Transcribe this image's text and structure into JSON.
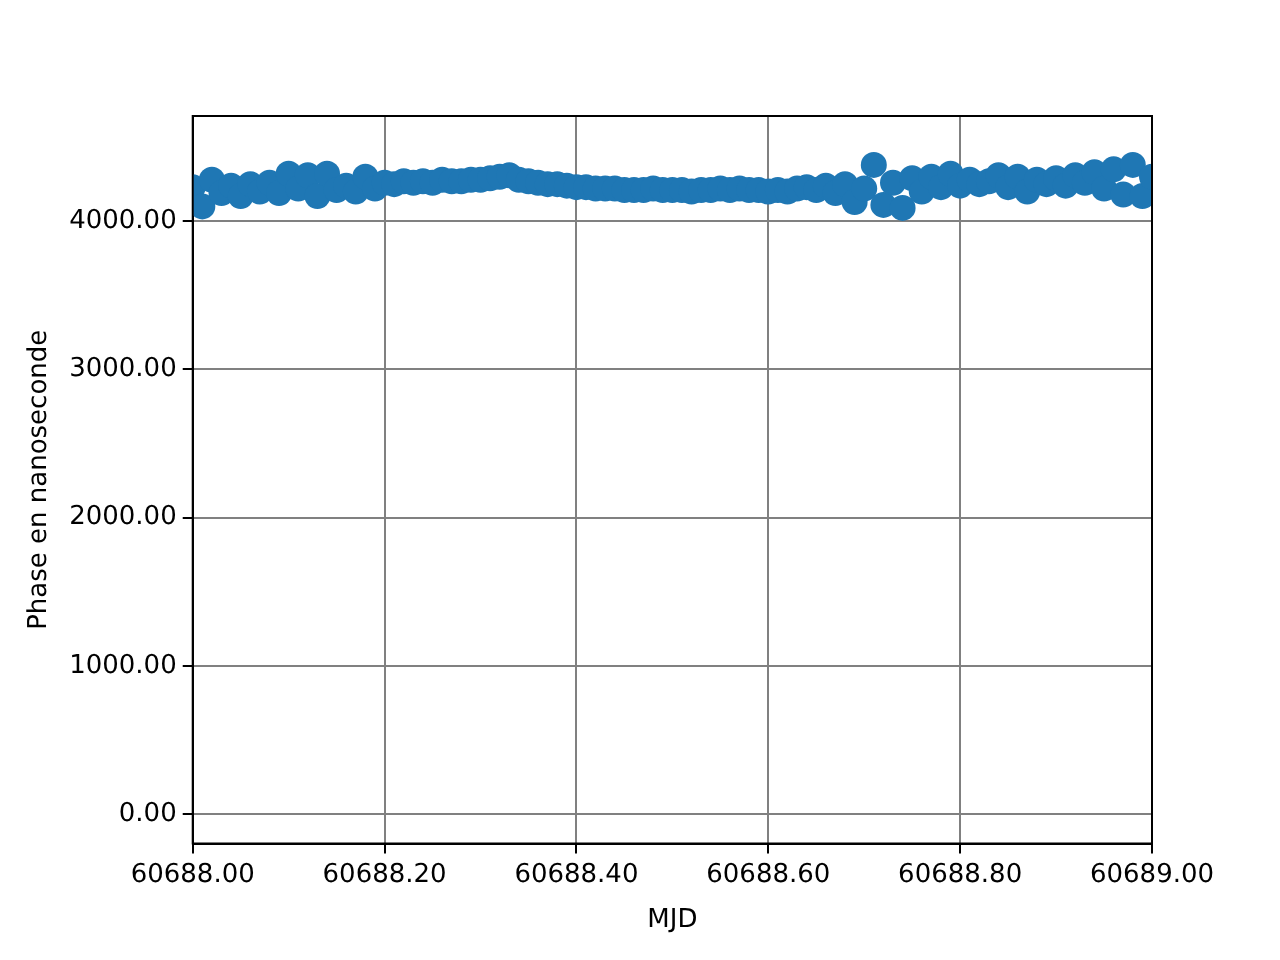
{
  "chart_data": {
    "type": "scatter",
    "xlabel": "MJD",
    "ylabel": "Phase en nanoseconde",
    "x": [
      60688.0,
      60688.01,
      60688.02,
      60688.03,
      60688.04,
      60688.05,
      60688.06,
      60688.07,
      60688.08,
      60688.09,
      60688.1,
      60688.11,
      60688.12,
      60688.13,
      60688.14,
      60688.15,
      60688.16,
      60688.17,
      60688.18,
      60688.19,
      60688.2,
      60688.21,
      60688.22,
      60688.23,
      60688.24,
      60688.25,
      60688.26,
      60688.27,
      60688.28,
      60688.29,
      60688.3,
      60688.31,
      60688.32,
      60688.33,
      60688.34,
      60688.35,
      60688.36,
      60688.37,
      60688.38,
      60688.39,
      60688.4,
      60688.41,
      60688.42,
      60688.43,
      60688.44,
      60688.45,
      60688.46,
      60688.47,
      60688.48,
      60688.49,
      60688.5,
      60688.51,
      60688.52,
      60688.53,
      60688.54,
      60688.55,
      60688.56,
      60688.57,
      60688.58,
      60688.59,
      60688.6,
      60688.61,
      60688.62,
      60688.63,
      60688.64,
      60688.65,
      60688.66,
      60688.67,
      60688.68,
      60688.69,
      60688.7,
      60688.71,
      60688.72,
      60688.73,
      60688.74,
      60688.75,
      60688.76,
      60688.77,
      60688.78,
      60688.79,
      60688.8,
      60688.81,
      60688.82,
      60688.83,
      60688.84,
      60688.85,
      60688.86,
      60688.87,
      60688.88,
      60688.89,
      60688.9,
      60688.91,
      60688.92,
      60688.93,
      60688.94,
      60688.95,
      60688.96,
      60688.97,
      60688.98,
      60688.99,
      60689.0
    ],
    "series": [
      {
        "color": "#1f77b4",
        "values": [
          4230,
          4100,
          4280,
          4190,
          4240,
          4170,
          4250,
          4200,
          4260,
          4190,
          4320,
          4220,
          4310,
          4170,
          4320,
          4210,
          4240,
          4200,
          4300,
          4220,
          4260,
          4250,
          4270,
          4260,
          4270,
          4260,
          4280,
          4270,
          4270,
          4280,
          4280,
          4290,
          4300,
          4310,
          4280,
          4270,
          4260,
          4250,
          4250,
          4240,
          4230,
          4230,
          4220,
          4220,
          4220,
          4210,
          4210,
          4210,
          4220,
          4210,
          4210,
          4210,
          4200,
          4210,
          4210,
          4220,
          4210,
          4220,
          4210,
          4210,
          4200,
          4210,
          4200,
          4220,
          4230,
          4210,
          4240,
          4190,
          4250,
          4130,
          4220,
          4380,
          4110,
          4260,
          4090,
          4290,
          4200,
          4300,
          4230,
          4320,
          4240,
          4280,
          4250,
          4270,
          4310,
          4230,
          4300,
          4200,
          4280,
          4250,
          4290,
          4240,
          4310,
          4260,
          4330,
          4220,
          4350,
          4180,
          4380,
          4170,
          4300
        ]
      }
    ],
    "xlim": [
      60688.0,
      60689.0
    ],
    "xticks": [
      {
        "value": 60688.0,
        "label": "60688.00"
      },
      {
        "value": 60688.2,
        "label": "60688.20"
      },
      {
        "value": 60688.4,
        "label": "60688.40"
      },
      {
        "value": 60688.6,
        "label": "60688.60"
      },
      {
        "value": 60688.8,
        "label": "60688.80"
      },
      {
        "value": 60689.0,
        "label": "60689.00"
      }
    ],
    "ylim": [
      -200,
      4710
    ],
    "yticks": [
      {
        "value": 0,
        "label": "0.00"
      },
      {
        "value": 1000,
        "label": "1000.00"
      },
      {
        "value": 2000,
        "label": "2000.00"
      },
      {
        "value": 3000,
        "label": "3000.00"
      },
      {
        "value": 4000,
        "label": "4000.00"
      }
    ],
    "grid": true,
    "legend": false,
    "marker": "circle"
  }
}
